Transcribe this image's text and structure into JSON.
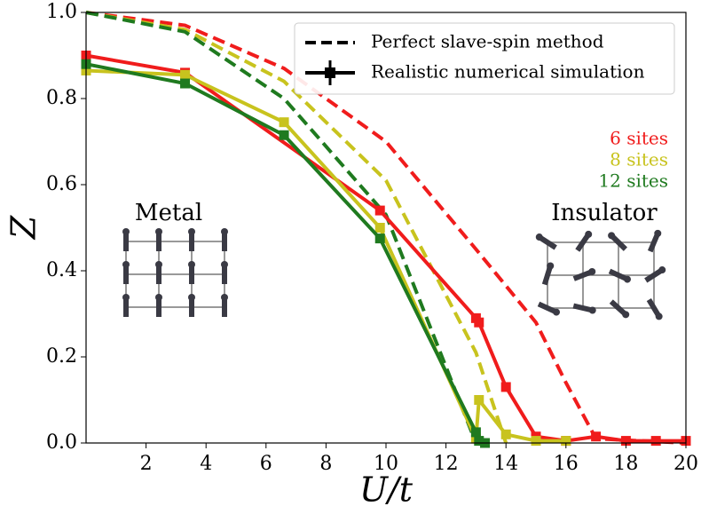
{
  "chart_data": {
    "type": "line",
    "x_label": "U/t",
    "y_label": "Z",
    "xlim": [
      0,
      20
    ],
    "ylim": [
      0,
      1
    ],
    "xticks": [
      2,
      4,
      6,
      8,
      10,
      12,
      14,
      16,
      18,
      20
    ],
    "yticks": [
      {
        "value": 0,
        "label": "0.0"
      },
      0.2,
      0.4,
      0.6,
      0.8,
      {
        "value": 1,
        "label": "1.0"
      }
    ],
    "legend": [
      {
        "label": "Perfect slave-spin method",
        "style": "dashed"
      },
      {
        "label": "Realistic numerical simulation",
        "style": "solid"
      }
    ],
    "groups": [
      {
        "name": "6 sites",
        "color": "#f01c1c",
        "simulation": {
          "x": [
            0,
            3.3,
            9.8,
            13,
            13.1,
            14,
            15,
            16,
            17,
            18,
            19,
            20
          ],
          "y": [
            0.9,
            0.86,
            0.54,
            0.29,
            0.28,
            0.13,
            0.015,
            0.005,
            0.015,
            0.005,
            0.005,
            0.005
          ]
        },
        "perfect": {
          "x": [
            0,
            3.3,
            6.6,
            10,
            13,
            15,
            16,
            17,
            20
          ],
          "y": [
            1,
            0.97,
            0.87,
            0.7,
            0.45,
            0.28,
            0.14,
            0.01,
            0
          ]
        }
      },
      {
        "name": "8 sites",
        "color": "#c8c31e",
        "simulation": {
          "x": [
            0,
            3.3,
            6.6,
            9.8,
            13,
            13.1,
            14,
            15,
            16
          ],
          "y": [
            0.865,
            0.855,
            0.745,
            0.5,
            0.01,
            0.1,
            0.02,
            0.005,
            0.005
          ]
        },
        "perfect": {
          "x": [
            0,
            3.3,
            6.6,
            10,
            13,
            14
          ],
          "y": [
            1,
            0.96,
            0.84,
            0.61,
            0.21,
            0
          ]
        }
      },
      {
        "name": "12 sites",
        "color": "#1f7a1f",
        "simulation": {
          "x": [
            0,
            3.3,
            6.6,
            9.8,
            13,
            13.1,
            13.3
          ],
          "y": [
            0.88,
            0.835,
            0.715,
            0.475,
            0.025,
            0.005,
            0
          ]
        },
        "perfect": {
          "x": [
            0,
            3.3,
            6.6,
            10,
            13
          ],
          "y": [
            1,
            0.955,
            0.8,
            0.53,
            0
          ]
        }
      }
    ],
    "annotations": [
      "Metal",
      "Insulator"
    ]
  }
}
